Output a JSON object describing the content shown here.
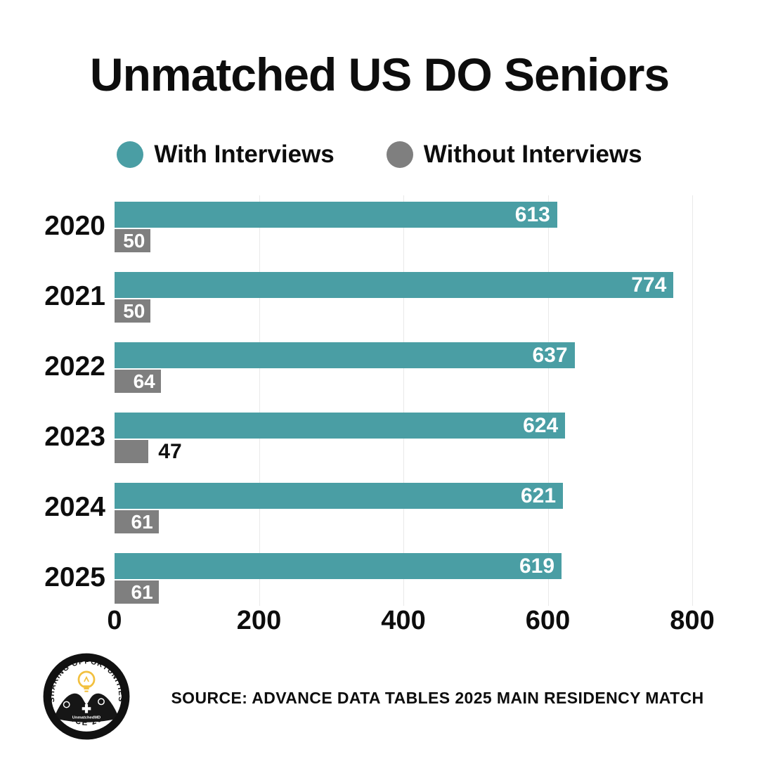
{
  "title": "Unmatched US DO Seniors",
  "legend": {
    "items": [
      {
        "label": "With Interviews",
        "color": "#4a9ea4"
      },
      {
        "label": "Without Interviews",
        "color": "#7f7f7f"
      }
    ]
  },
  "chart_data": {
    "type": "bar",
    "orientation": "horizontal",
    "title": "Unmatched US DO Seniors",
    "categories": [
      "2020",
      "2021",
      "2022",
      "2023",
      "2024",
      "2025"
    ],
    "series": [
      {
        "name": "With Interviews",
        "color": "#4a9ea4",
        "values": [
          613,
          774,
          637,
          624,
          621,
          619
        ]
      },
      {
        "name": "Without Interviews",
        "color": "#7f7f7f",
        "values": [
          50,
          50,
          64,
          47,
          61,
          61
        ]
      }
    ],
    "xlim": [
      0,
      800
    ],
    "xticks": [
      0,
      200,
      400,
      600,
      800
    ],
    "grid": "vertical",
    "legend_position": "top",
    "value_labels": true,
    "value_label_color_inside": "#ffffff",
    "value_label_color_outside": "#111111"
  },
  "footer": {
    "source": "SOURCE: ADVANCE DATA TABLES 2025 MAIN RESIDENCY MATCH",
    "logo": {
      "arc_top": "SHARING OPPORTUNITIES",
      "arc_bottom": "SINCE 2018",
      "center_text": "UnmatchedMD",
      "bulb_color": "#f2c03f"
    }
  }
}
